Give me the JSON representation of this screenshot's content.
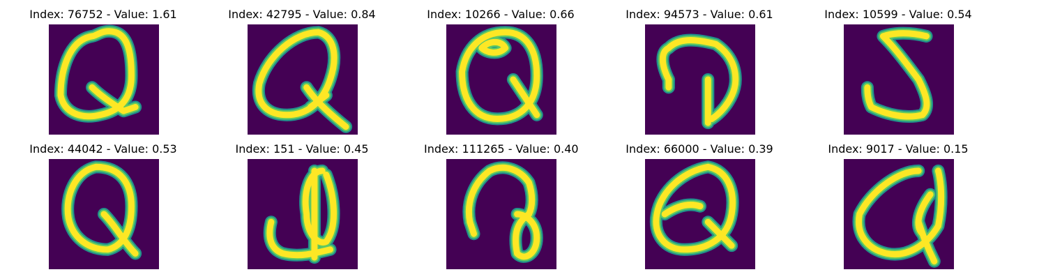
{
  "colors": {
    "background": "#440154",
    "stroke_core": "#fde725",
    "stroke_mid": "#5ec962",
    "stroke_edge": "#21918c"
  },
  "panels": [
    {
      "index": "76752",
      "value": "1.61",
      "title": "Index: 76752 - Value: 1.61",
      "glyph": "Q"
    },
    {
      "index": "42795",
      "value": "0.84",
      "title": "Index: 42795 - Value: 0.84",
      "glyph": "Q"
    },
    {
      "index": "10266",
      "value": "0.66",
      "title": "Index: 10266 - Value: 0.66",
      "glyph": "Q"
    },
    {
      "index": "94573",
      "value": "0.61",
      "title": "Index: 94573 - Value: 0.61",
      "glyph": "D"
    },
    {
      "index": "10599",
      "value": "0.54",
      "title": "Index: 10599 - Value: 0.54",
      "glyph": "S"
    },
    {
      "index": "44042",
      "value": "0.53",
      "title": "Index: 44042 - Value: 0.53",
      "glyph": "Q"
    },
    {
      "index": "151",
      "value": "0.45",
      "title": "Index: 151 - Value: 0.45",
      "glyph": "J"
    },
    {
      "index": "111265",
      "value": "0.40",
      "title": "Index: 111265 - Value: 0.40",
      "glyph": "D"
    },
    {
      "index": "66000",
      "value": "0.39",
      "title": "Index: 66000 - Value: 0.39",
      "glyph": "Q"
    },
    {
      "index": "9017",
      "value": "0.15",
      "title": "Index: 9017 - Value: 0.15",
      "glyph": "Q"
    }
  ]
}
